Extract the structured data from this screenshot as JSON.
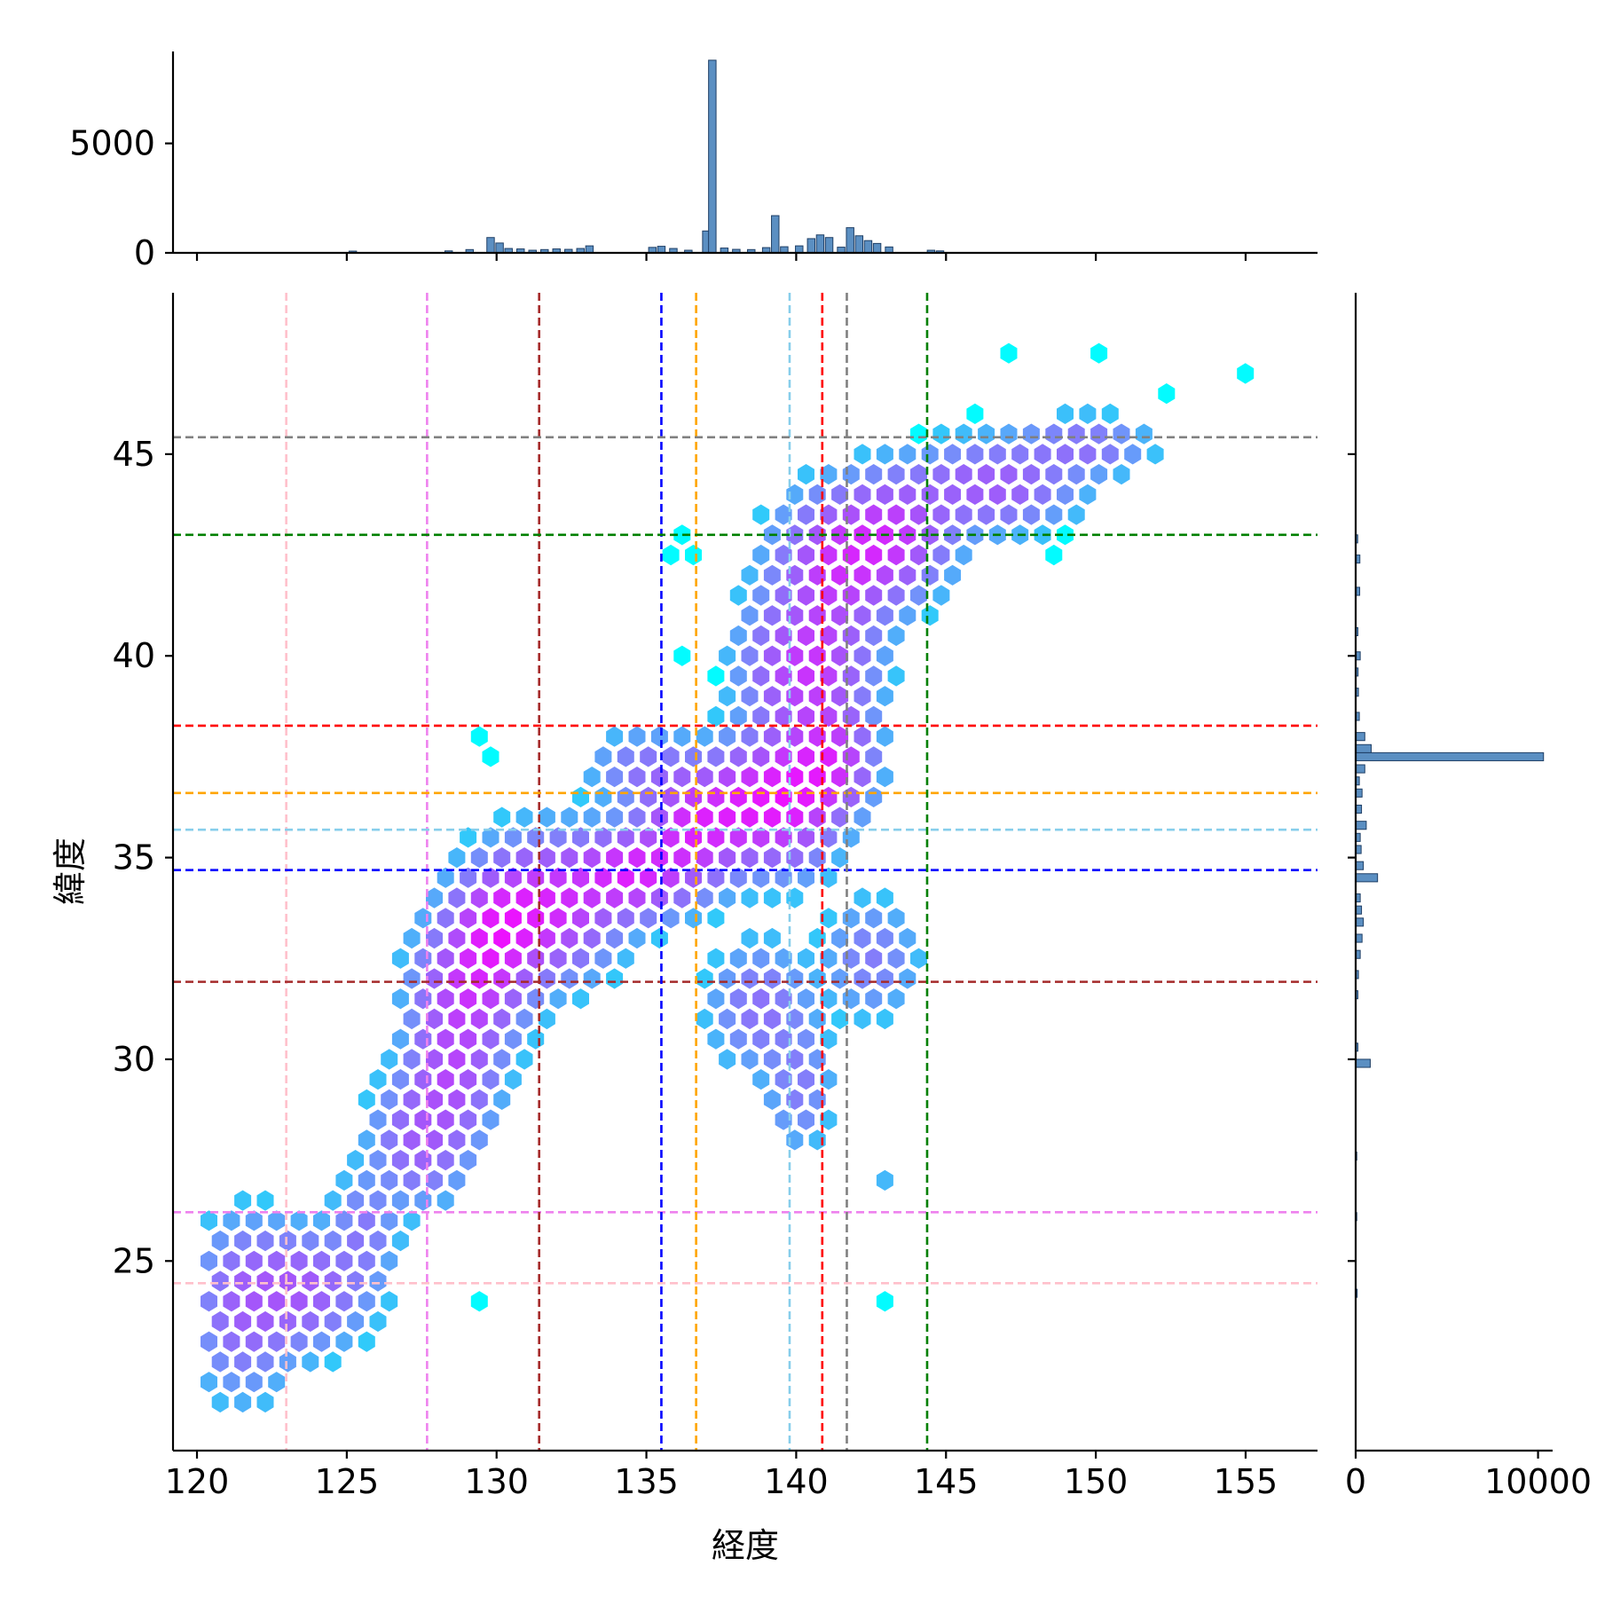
{
  "chart_data": {
    "type": "hexbin",
    "xlabel": "経度",
    "ylabel": "緯度",
    "xlim": [
      119.2,
      157.4
    ],
    "ylim": [
      20.3,
      49.0
    ],
    "x_ticks": [
      120,
      125,
      130,
      135,
      140,
      145,
      150,
      155
    ],
    "y_ticks": [
      25,
      30,
      35,
      40,
      45
    ],
    "marginal_x": {
      "type": "histogram",
      "ylim": [
        0,
        9200
      ],
      "y_ticks": [
        0,
        5000
      ],
      "bins": [
        [
          125.2,
          80
        ],
        [
          128.4,
          90
        ],
        [
          129.1,
          150
        ],
        [
          129.8,
          700
        ],
        [
          130.1,
          450
        ],
        [
          130.4,
          200
        ],
        [
          130.8,
          180
        ],
        [
          131.2,
          120
        ],
        [
          131.6,
          150
        ],
        [
          132.0,
          180
        ],
        [
          132.4,
          160
        ],
        [
          132.8,
          200
        ],
        [
          133.1,
          320
        ],
        [
          135.2,
          250
        ],
        [
          135.5,
          300
        ],
        [
          135.9,
          200
        ],
        [
          136.4,
          120
        ],
        [
          137.0,
          1000
        ],
        [
          137.2,
          8800
        ],
        [
          137.6,
          220
        ],
        [
          138.0,
          160
        ],
        [
          138.5,
          150
        ],
        [
          139.0,
          240
        ],
        [
          139.3,
          1700
        ],
        [
          139.6,
          280
        ],
        [
          140.1,
          320
        ],
        [
          140.5,
          650
        ],
        [
          140.8,
          820
        ],
        [
          141.1,
          700
        ],
        [
          141.5,
          260
        ],
        [
          141.8,
          1150
        ],
        [
          142.1,
          780
        ],
        [
          142.4,
          560
        ],
        [
          142.7,
          430
        ],
        [
          143.1,
          270
        ],
        [
          144.5,
          120
        ],
        [
          144.8,
          90
        ]
      ]
    },
    "marginal_y": {
      "type": "histogram",
      "xlim": [
        0,
        10800
      ],
      "x_ticks": [
        0,
        10000
      ],
      "bins": [
        [
          24.2,
          80
        ],
        [
          26.1,
          60
        ],
        [
          27.6,
          60
        ],
        [
          29.9,
          800
        ],
        [
          30.3,
          120
        ],
        [
          31.6,
          120
        ],
        [
          32.1,
          150
        ],
        [
          32.6,
          250
        ],
        [
          33.0,
          350
        ],
        [
          33.4,
          420
        ],
        [
          33.7,
          320
        ],
        [
          34.0,
          250
        ],
        [
          34.5,
          1200
        ],
        [
          34.8,
          420
        ],
        [
          35.2,
          300
        ],
        [
          35.5,
          250
        ],
        [
          35.8,
          580
        ],
        [
          36.2,
          320
        ],
        [
          36.6,
          350
        ],
        [
          36.9,
          200
        ],
        [
          37.2,
          500
        ],
        [
          37.5,
          10300
        ],
        [
          37.7,
          850
        ],
        [
          38.0,
          500
        ],
        [
          38.5,
          200
        ],
        [
          39.1,
          150
        ],
        [
          39.6,
          130
        ],
        [
          40.0,
          250
        ],
        [
          40.6,
          120
        ],
        [
          41.6,
          220
        ],
        [
          42.4,
          230
        ],
        [
          42.9,
          110
        ]
      ]
    },
    "reference_lines": [
      {
        "color": "#ffc0cb",
        "x": 122.98,
        "y": 24.45
      },
      {
        "color": "#ee82ee",
        "x": 127.68,
        "y": 26.21
      },
      {
        "color": "#a52a2a",
        "x": 131.42,
        "y": 31.92
      },
      {
        "color": "#0000ff",
        "x": 135.5,
        "y": 34.69
      },
      {
        "color": "#ffa500",
        "x": 136.66,
        "y": 36.6
      },
      {
        "color": "#87ceeb",
        "x": 139.78,
        "y": 35.69
      },
      {
        "color": "#ff0000",
        "x": 140.87,
        "y": 38.27
      },
      {
        "color": "#808080",
        "x": 141.69,
        "y": 45.42
      },
      {
        "color": "#008000",
        "x": 144.37,
        "y": 43.0
      }
    ]
  }
}
